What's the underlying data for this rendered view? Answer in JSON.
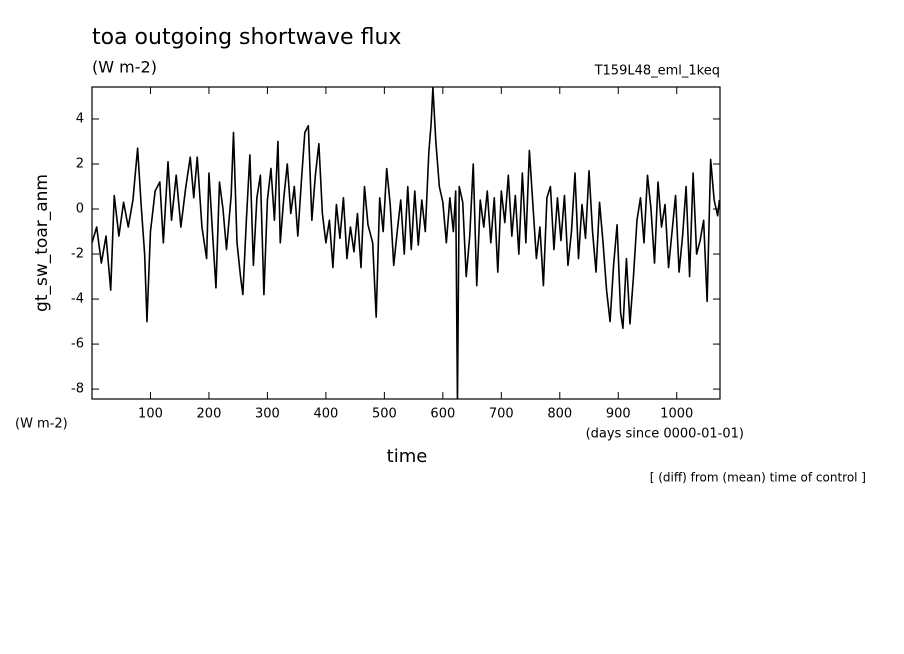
{
  "chart_data": {
    "type": "line",
    "title": "toa outgoing shortwave flux",
    "subtitle": "(W m-2)",
    "run_label": "T159L48_eml_1keq",
    "y_label": "gt_sw_toar_anm",
    "y_unit": "(W m-2)",
    "x_label": "time",
    "x_unit": "(days since 0000-01-01)",
    "footnote": "[ (diff) from (mean) time of control ]",
    "color": "#000000",
    "xlim": [
      0,
      1074
    ],
    "xticks": [
      100,
      200,
      300,
      400,
      500,
      600,
      700,
      800,
      900,
      1000
    ],
    "ylim": [
      -8.44,
      5.42
    ],
    "yticks": [
      -8,
      -6,
      -4,
      -2,
      0,
      2,
      4
    ],
    "x": [
      0,
      8,
      16,
      24,
      32,
      38,
      46,
      54,
      62,
      70,
      78,
      84,
      90,
      94,
      100,
      108,
      116,
      122,
      130,
      136,
      144,
      152,
      160,
      168,
      174,
      180,
      188,
      196,
      200,
      206,
      212,
      218,
      224,
      230,
      238,
      242,
      248,
      254,
      258,
      264,
      270,
      276,
      282,
      288,
      294,
      300,
      306,
      312,
      318,
      322,
      328,
      334,
      340,
      346,
      352,
      358,
      364,
      370,
      376,
      382,
      388,
      394,
      400,
      406,
      412,
      418,
      424,
      430,
      436,
      442,
      448,
      454,
      460,
      466,
      472,
      480,
      486,
      492,
      498,
      504,
      510,
      516,
      522,
      528,
      534,
      540,
      546,
      552,
      558,
      564,
      570,
      576,
      580,
      583,
      588,
      594,
      600,
      606,
      612,
      618,
      622,
      625,
      628,
      634,
      640,
      646,
      652,
      658,
      664,
      670,
      676,
      682,
      688,
      694,
      700,
      706,
      712,
      718,
      724,
      730,
      736,
      742,
      748,
      754,
      760,
      766,
      772,
      778,
      784,
      790,
      796,
      802,
      808,
      814,
      820,
      826,
      832,
      838,
      844,
      850,
      856,
      862,
      868,
      874,
      880,
      886,
      892,
      898,
      904,
      908,
      914,
      920,
      926,
      932,
      938,
      944,
      950,
      956,
      962,
      968,
      974,
      980,
      986,
      992,
      998,
      1004,
      1010,
      1016,
      1022,
      1028,
      1034,
      1040,
      1046,
      1052,
      1058,
      1064,
      1070,
      1073
    ],
    "values": [
      -1.5,
      -0.8,
      -2.4,
      -1.2,
      -3.6,
      0.6,
      -1.2,
      0.3,
      -0.8,
      0.4,
      2.7,
      0.2,
      -2.0,
      -5.0,
      -1.0,
      0.8,
      1.2,
      -1.5,
      2.1,
      -0.5,
      1.5,
      -0.8,
      0.9,
      2.3,
      0.5,
      2.3,
      -0.8,
      -2.2,
      1.6,
      -1.0,
      -3.5,
      1.2,
      0.0,
      -1.8,
      0.6,
      3.4,
      -1.5,
      -3.0,
      -3.8,
      -0.5,
      2.4,
      -2.5,
      0.5,
      1.5,
      -3.8,
      0.4,
      1.8,
      -0.5,
      3.0,
      -1.5,
      0.5,
      2.0,
      -0.2,
      1.0,
      -1.2,
      1.2,
      3.4,
      3.7,
      -0.5,
      1.5,
      2.9,
      -0.2,
      -1.5,
      -0.5,
      -2.6,
      0.2,
      -1.3,
      0.5,
      -2.2,
      -0.8,
      -1.9,
      -0.2,
      -2.6,
      1.0,
      -0.7,
      -1.5,
      -4.8,
      0.5,
      -1.0,
      1.8,
      0.2,
      -2.5,
      -1.0,
      0.4,
      -2.0,
      1.0,
      -1.8,
      0.8,
      -1.6,
      0.4,
      -1.0,
      2.5,
      3.8,
      5.4,
      3.0,
      1.0,
      0.3,
      -1.5,
      0.5,
      -1.0,
      0.8,
      -8.6,
      1.0,
      0.3,
      -3.0,
      -1.2,
      2.0,
      -3.4,
      0.4,
      -0.8,
      0.8,
      -1.5,
      0.5,
      -2.8,
      0.8,
      -0.6,
      1.5,
      -1.2,
      0.6,
      -2.0,
      1.6,
      -1.5,
      2.6,
      0.2,
      -2.2,
      -0.8,
      -3.4,
      0.5,
      1.0,
      -1.8,
      0.5,
      -1.4,
      0.6,
      -2.5,
      -1.0,
      1.6,
      -2.2,
      0.2,
      -1.3,
      1.7,
      -1.0,
      -2.8,
      0.3,
      -1.5,
      -3.6,
      -5.0,
      -2.5,
      -0.7,
      -4.6,
      -5.3,
      -2.2,
      -5.1,
      -3.0,
      -0.5,
      0.5,
      -1.5,
      1.5,
      0.0,
      -2.4,
      1.2,
      -0.8,
      0.2,
      -2.6,
      -1.0,
      0.6,
      -2.8,
      -1.2,
      1.0,
      -3.0,
      1.6,
      -2.0,
      -1.4,
      -0.5,
      -4.1,
      2.2,
      0.4,
      -0.3,
      0.4
    ]
  }
}
